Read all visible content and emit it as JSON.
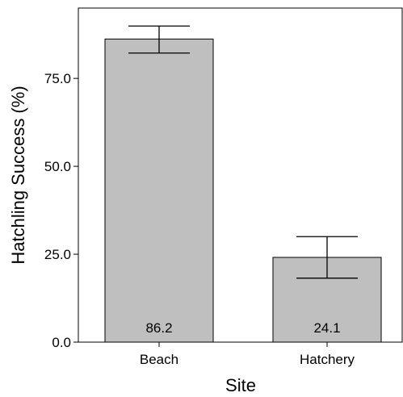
{
  "chart_data": {
    "type": "bar",
    "title": "",
    "xlabel": "Site",
    "ylabel": "Hatchling Success (%)",
    "categories": [
      "Beach",
      "Hatchery"
    ],
    "values": [
      86.2,
      24.1
    ],
    "value_labels": [
      "86.2",
      "24.1"
    ],
    "error_bars": [
      {
        "lower": 82.2,
        "upper": 89.9
      },
      {
        "lower": 18.2,
        "upper": 30.0
      }
    ],
    "ylim": [
      0,
      95
    ],
    "yticks": [
      0,
      25,
      50,
      75
    ],
    "ytick_labels": [
      "0.0",
      "25.0",
      "50.0",
      "75.0"
    ],
    "grid": false,
    "legend": "none",
    "bar_color": "#bfbfbf"
  }
}
